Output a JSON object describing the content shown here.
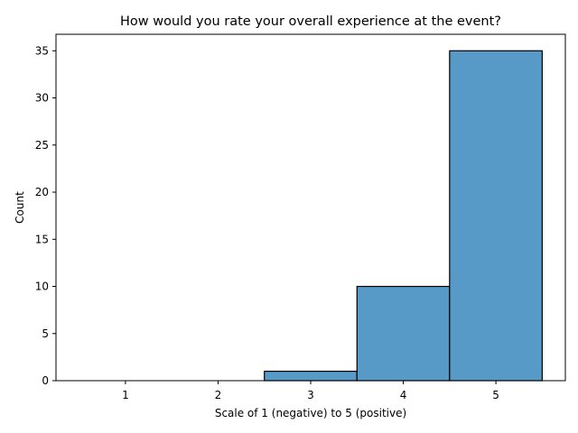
{
  "chart_data": {
    "type": "bar",
    "title": "How would you rate your overall experience at the event?",
    "xlabel": "Scale of 1 (negative) to 5 (positive)",
    "ylabel": "Count",
    "categories": [
      "1",
      "2",
      "3",
      "4",
      "5"
    ],
    "x": [
      1,
      2,
      3,
      4,
      5
    ],
    "values": [
      0,
      0,
      1,
      10,
      35
    ],
    "xlim": [
      0.25,
      5.75
    ],
    "ylim": [
      0,
      36.75
    ],
    "yticks": [
      0,
      5,
      10,
      15,
      20,
      25,
      30,
      35
    ],
    "grid": false,
    "legend": "none",
    "bar_color": "#5799c7",
    "edge_color": "#000000"
  }
}
